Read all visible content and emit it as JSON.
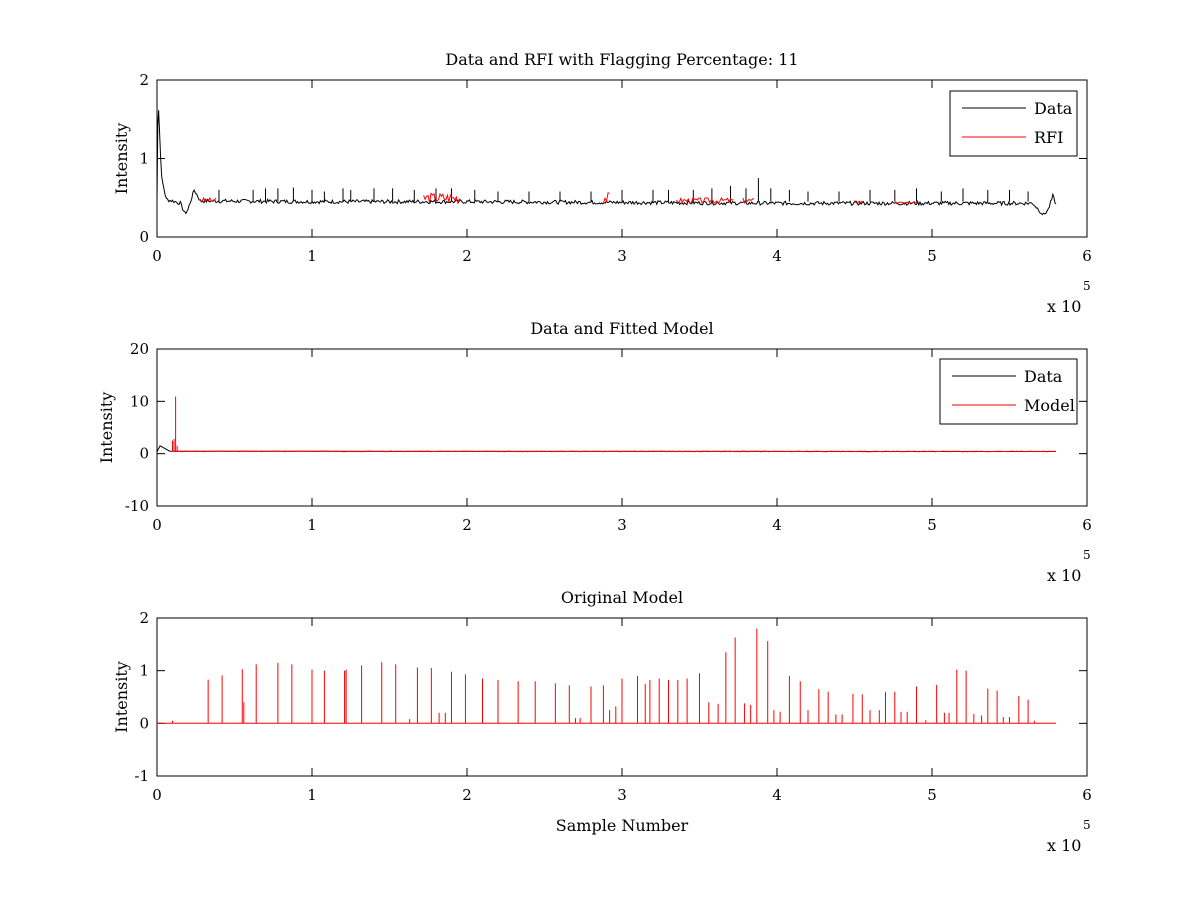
{
  "chart_data": [
    {
      "type": "line",
      "title": "Data and RFI with Flagging Percentage: 11",
      "xlabel": "",
      "ylabel": "Intensity",
      "xlim": [
        0,
        6
      ],
      "ylim": [
        0,
        2
      ],
      "xticks": [
        "0",
        "1",
        "2",
        "3",
        "4",
        "5",
        "6"
      ],
      "yticks": [
        "0",
        "1",
        "2"
      ],
      "x_multiplier": {
        "base": "x 10",
        "power": "5"
      },
      "legend": {
        "position": "top-right",
        "entries": [
          "Data",
          "RFI"
        ]
      },
      "colors": {
        "Data": "#000000",
        "RFI": "#ff0000"
      },
      "series": [
        {
          "name": "Data",
          "baseline": [
            [
              0,
              0.45
            ],
            [
              0.005,
              1.45
            ],
            [
              0.01,
              1.62
            ],
            [
              0.03,
              0.75
            ],
            [
              0.06,
              0.48
            ],
            [
              0.1,
              0.46
            ],
            [
              0.15,
              0.43
            ],
            [
              0.18,
              0.3
            ],
            [
              0.2,
              0.35
            ],
            [
              0.24,
              0.6
            ],
            [
              0.28,
              0.46
            ],
            [
              1.0,
              0.45
            ],
            [
              2.0,
              0.45
            ],
            [
              3.0,
              0.44
            ],
            [
              4.0,
              0.43
            ],
            [
              5.0,
              0.43
            ],
            [
              5.65,
              0.43
            ],
            [
              5.72,
              0.28
            ],
            [
              5.75,
              0.35
            ],
            [
              5.78,
              0.52
            ],
            [
              5.8,
              0.42
            ]
          ],
          "spikes": [
            [
              0.4,
              0.6
            ],
            [
              0.62,
              0.6
            ],
            [
              0.7,
              0.62
            ],
            [
              0.78,
              0.62
            ],
            [
              0.88,
              0.63
            ],
            [
              1.0,
              0.6
            ],
            [
              1.08,
              0.58
            ],
            [
              1.2,
              0.62
            ],
            [
              1.25,
              0.6
            ],
            [
              1.4,
              0.62
            ],
            [
              1.52,
              0.62
            ],
            [
              1.66,
              0.6
            ],
            [
              1.8,
              0.62
            ],
            [
              1.9,
              0.62
            ],
            [
              2.05,
              0.6
            ],
            [
              2.2,
              0.58
            ],
            [
              2.4,
              0.58
            ],
            [
              2.6,
              0.58
            ],
            [
              2.8,
              0.58
            ],
            [
              3.0,
              0.6
            ],
            [
              3.2,
              0.6
            ],
            [
              3.3,
              0.6
            ],
            [
              3.46,
              0.6
            ],
            [
              3.58,
              0.62
            ],
            [
              3.7,
              0.65
            ],
            [
              3.8,
              0.62
            ],
            [
              3.88,
              0.75
            ],
            [
              3.96,
              0.62
            ],
            [
              4.08,
              0.6
            ],
            [
              4.2,
              0.58
            ],
            [
              4.4,
              0.58
            ],
            [
              4.6,
              0.6
            ],
            [
              4.76,
              0.6
            ],
            [
              4.9,
              0.62
            ],
            [
              5.06,
              0.58
            ],
            [
              5.2,
              0.62
            ],
            [
              5.36,
              0.6
            ],
            [
              5.5,
              0.6
            ],
            [
              5.62,
              0.58
            ]
          ]
        },
        {
          "name": "RFI",
          "segments": [
            [
              0.28,
              0.32,
              0.5
            ],
            [
              0.33,
              0.38,
              0.5
            ],
            [
              1.72,
              1.96,
              0.55
            ],
            [
              2.88,
              2.92,
              0.55
            ],
            [
              3.35,
              3.72,
              0.5
            ],
            [
              3.78,
              3.85,
              0.5
            ],
            [
              4.5,
              4.55,
              0.48
            ],
            [
              4.75,
              4.9,
              0.46
            ]
          ]
        }
      ]
    },
    {
      "type": "line",
      "title": "Data and Fitted Model",
      "xlabel": "",
      "ylabel": "Intensity",
      "xlim": [
        0,
        6
      ],
      "ylim": [
        -10,
        20
      ],
      "xticks": [
        "0",
        "1",
        "2",
        "3",
        "4",
        "5",
        "6"
      ],
      "yticks": [
        "-10",
        "0",
        "10",
        "20"
      ],
      "x_multiplier": {
        "base": "x 10",
        "power": "5"
      },
      "legend": {
        "position": "top-right",
        "entries": [
          "Data",
          "Model"
        ]
      },
      "colors": {
        "Data": "#000000",
        "Model": "#ff0000"
      },
      "series": [
        {
          "name": "Data",
          "points": [
            [
              0,
              0.4
            ],
            [
              0.02,
              1.5
            ],
            [
              0.05,
              1.0
            ],
            [
              0.08,
              0.5
            ],
            [
              0.15,
              0.45
            ],
            [
              1.0,
              0.45
            ],
            [
              3.0,
              0.44
            ],
            [
              5.8,
              0.42
            ]
          ]
        },
        {
          "name": "Model",
          "spikes": [
            [
              0.1,
              2.5
            ],
            [
              0.11,
              2.8
            ],
            [
              0.12,
              10.9
            ],
            [
              0.13,
              1.5
            ]
          ],
          "baseline": [
            [
              0.1,
              0.45
            ],
            [
              5.8,
              0.42
            ]
          ]
        }
      ]
    },
    {
      "type": "line",
      "title": "Original Model",
      "xlabel": "Sample Number",
      "ylabel": "Intensity",
      "xlim": [
        0,
        6
      ],
      "ylim": [
        -1,
        2
      ],
      "xticks": [
        "0",
        "1",
        "2",
        "3",
        "4",
        "5",
        "6"
      ],
      "yticks": [
        "-1",
        "0",
        "1",
        "2"
      ],
      "x_multiplier": {
        "base": "x 10",
        "power": "5"
      },
      "colors": {
        "Model": "#ff0000"
      },
      "series": [
        {
          "spikes": [
            [
              0.1,
              0.05
            ],
            [
              0.33,
              0.83
            ],
            [
              0.42,
              0.91
            ],
            [
              0.55,
              1.03
            ],
            [
              0.56,
              0.4
            ],
            [
              0.64,
              1.12
            ],
            [
              0.78,
              1.15
            ],
            [
              0.87,
              1.12
            ],
            [
              1.0,
              1.02
            ],
            [
              1.08,
              1.0
            ],
            [
              1.21,
              1.0
            ],
            [
              1.22,
              1.02
            ],
            [
              1.32,
              1.1
            ],
            [
              1.45,
              1.16
            ],
            [
              1.54,
              1.12
            ],
            [
              1.63,
              0.08
            ],
            [
              1.68,
              1.06
            ],
            [
              1.77,
              1.05
            ],
            [
              1.82,
              0.2
            ],
            [
              1.86,
              0.2
            ],
            [
              1.9,
              0.98
            ],
            [
              1.99,
              0.93
            ],
            [
              2.1,
              0.85
            ],
            [
              2.2,
              0.82
            ],
            [
              2.33,
              0.8
            ],
            [
              2.44,
              0.8
            ],
            [
              2.57,
              0.76
            ],
            [
              2.66,
              0.72
            ],
            [
              2.7,
              0.1
            ],
            [
              2.73,
              0.1
            ],
            [
              2.8,
              0.7
            ],
            [
              2.88,
              0.72
            ],
            [
              2.92,
              0.25
            ],
            [
              2.96,
              0.32
            ],
            [
              3.0,
              0.85
            ],
            [
              3.1,
              0.9
            ],
            [
              3.15,
              0.75
            ],
            [
              3.18,
              0.82
            ],
            [
              3.24,
              0.85
            ],
            [
              3.3,
              0.82
            ],
            [
              3.36,
              0.82
            ],
            [
              3.42,
              0.85
            ],
            [
              3.5,
              0.95
            ],
            [
              3.56,
              0.4
            ],
            [
              3.62,
              0.37
            ],
            [
              3.67,
              1.35
            ],
            [
              3.73,
              1.63
            ],
            [
              3.79,
              0.38
            ],
            [
              3.83,
              0.35
            ],
            [
              3.87,
              1.8
            ],
            [
              3.94,
              1.56
            ],
            [
              3.98,
              0.25
            ],
            [
              4.02,
              0.22
            ],
            [
              4.08,
              0.9
            ],
            [
              4.15,
              0.8
            ],
            [
              4.2,
              0.25
            ],
            [
              4.27,
              0.65
            ],
            [
              4.33,
              0.6
            ],
            [
              4.38,
              0.17
            ],
            [
              4.42,
              0.17
            ],
            [
              4.49,
              0.56
            ],
            [
              4.55,
              0.55
            ],
            [
              4.6,
              0.25
            ],
            [
              4.66,
              0.25
            ],
            [
              4.7,
              0.6
            ],
            [
              4.76,
              0.6
            ],
            [
              4.8,
              0.22
            ],
            [
              4.84,
              0.22
            ],
            [
              4.9,
              0.7
            ],
            [
              4.96,
              0.06
            ],
            [
              5.03,
              0.73
            ],
            [
              5.08,
              0.2
            ],
            [
              5.11,
              0.2
            ],
            [
              5.16,
              1.02
            ],
            [
              5.22,
              1.0
            ],
            [
              5.27,
              0.18
            ],
            [
              5.32,
              0.15
            ],
            [
              5.36,
              0.66
            ],
            [
              5.42,
              0.62
            ],
            [
              5.46,
              0.12
            ],
            [
              5.5,
              0.12
            ],
            [
              5.56,
              0.52
            ],
            [
              5.62,
              0.45
            ],
            [
              5.66,
              0.05
            ]
          ],
          "baseline": [
            [
              0.0,
              0.0
            ],
            [
              5.8,
              0.0
            ]
          ]
        }
      ]
    }
  ]
}
